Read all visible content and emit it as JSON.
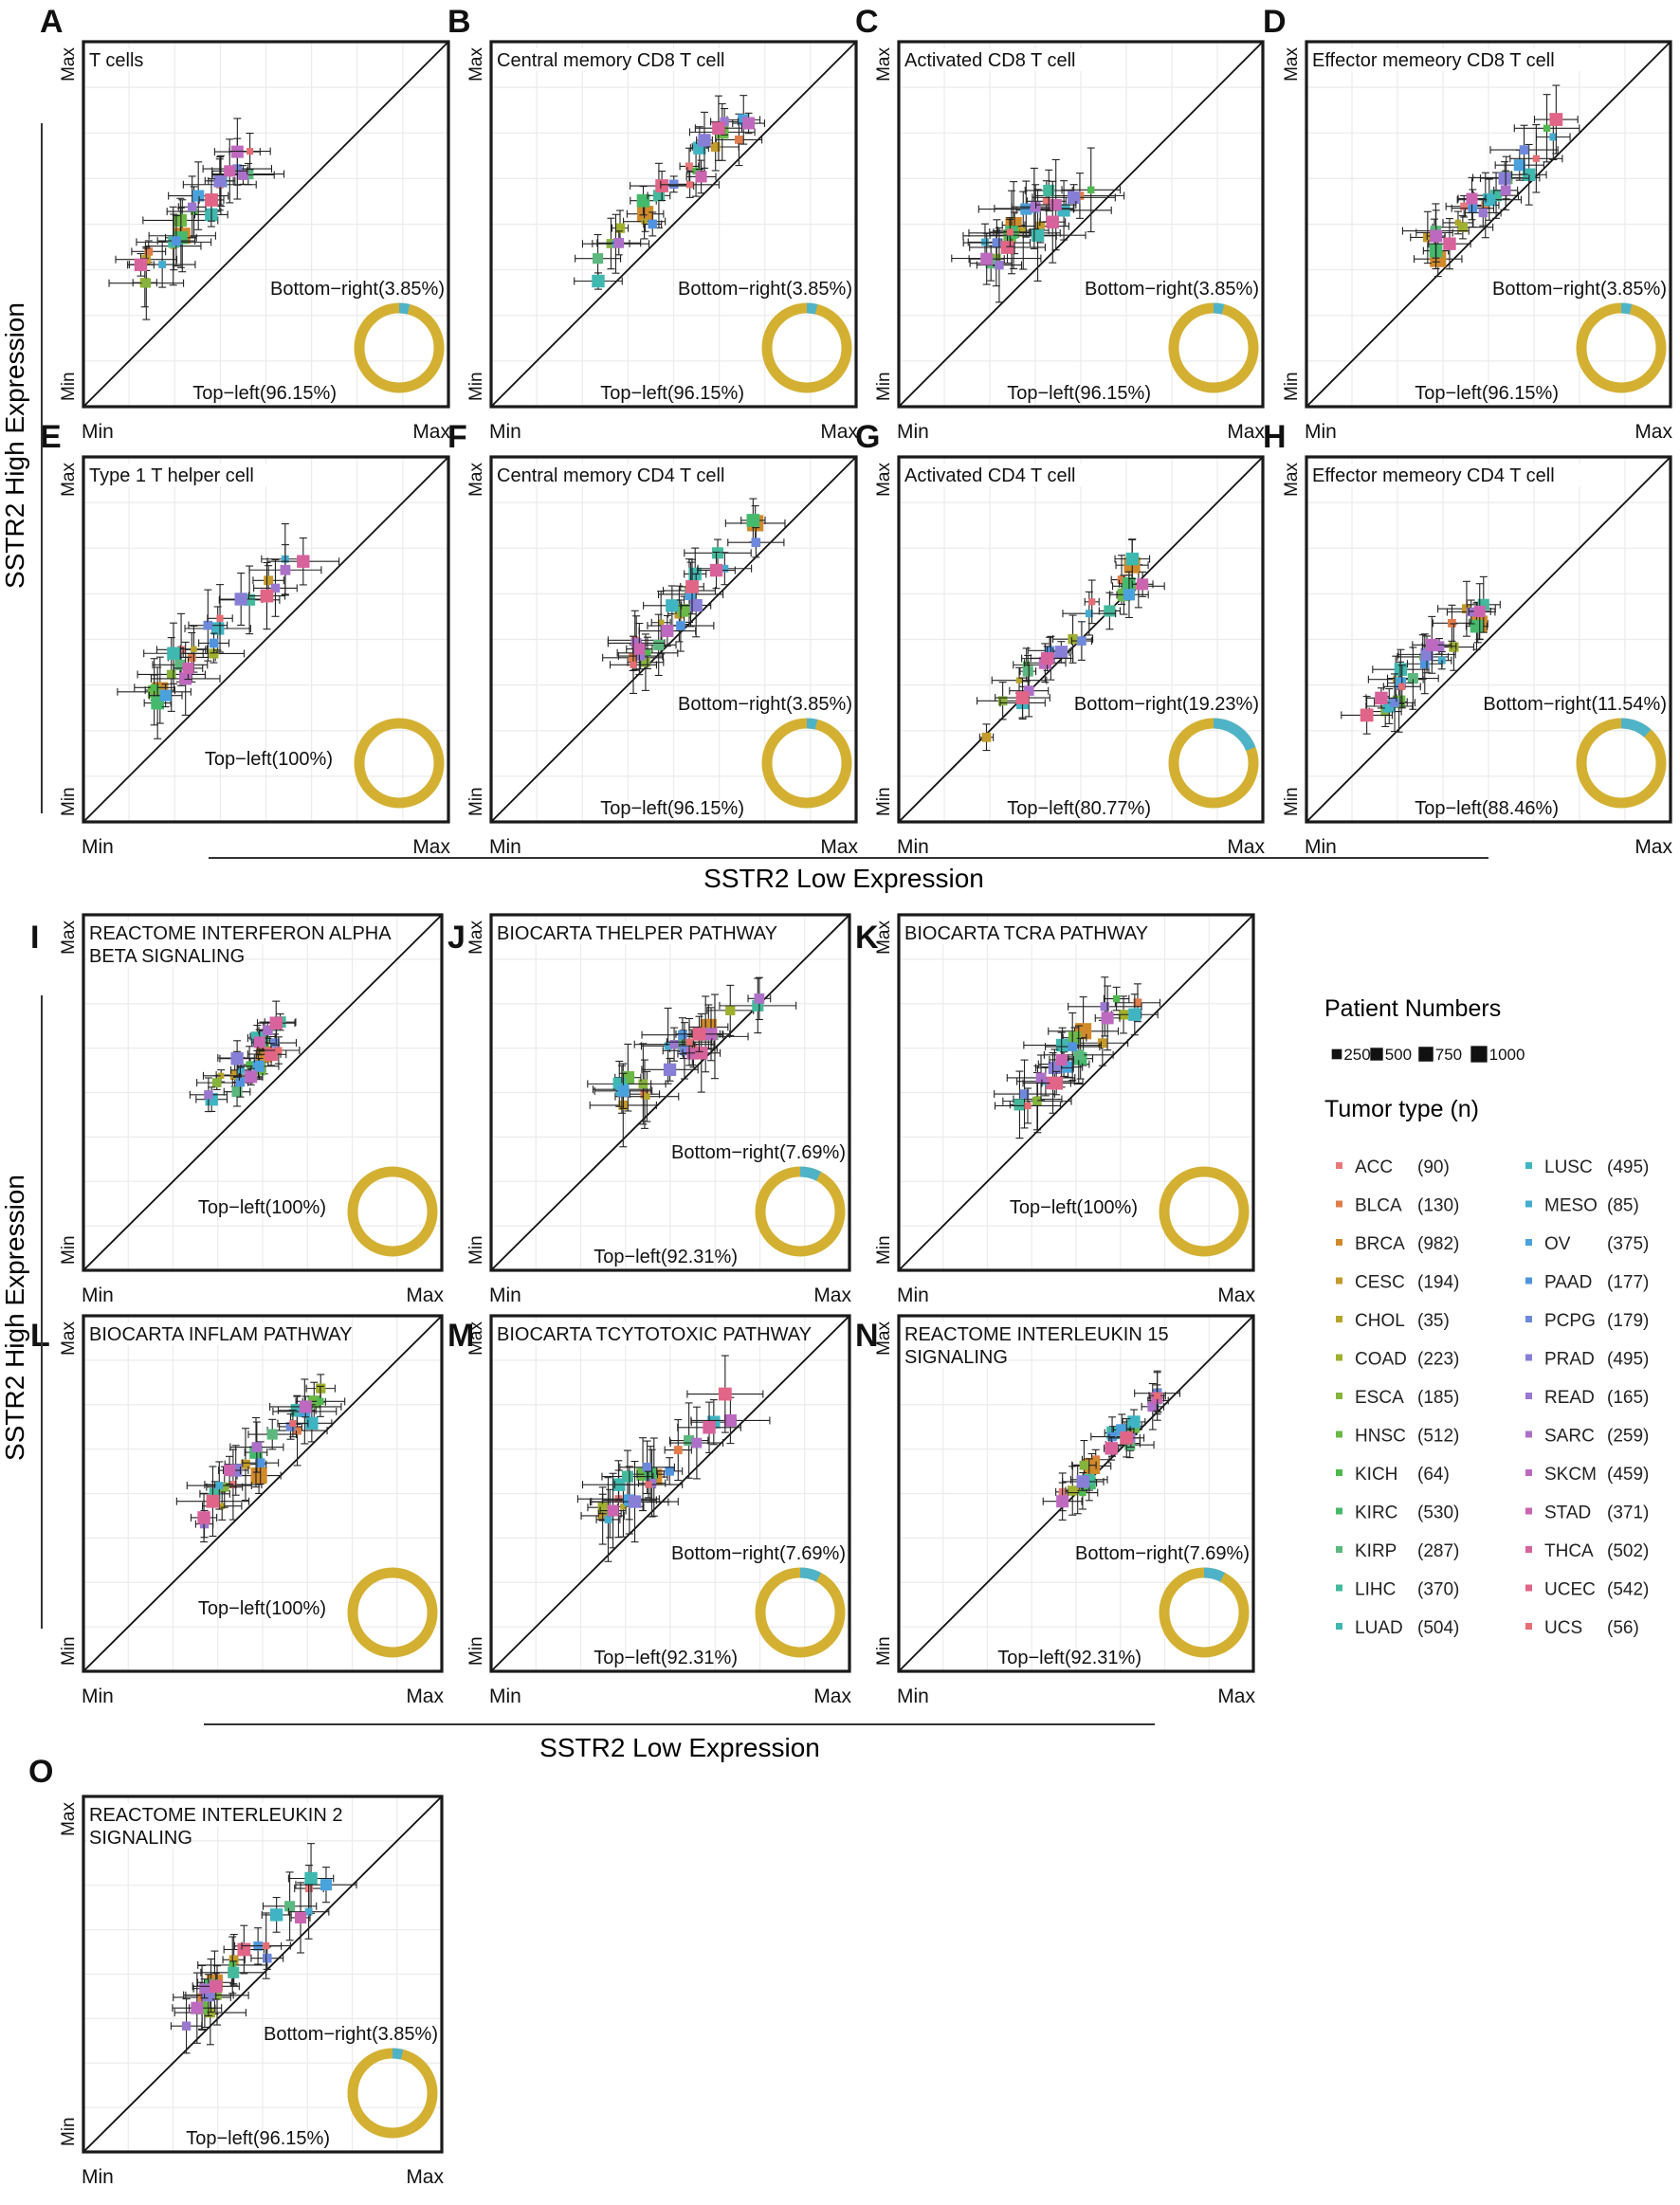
{
  "figure": {
    "upper_ylabel": "SSTR2 High Expression",
    "upper_xlabel": "SSTR2 Low Expression",
    "lower_ylabel": "SSTR2 High Expression",
    "lower_xlabel": "SSTR2 Low Expression",
    "axis_min": "Min",
    "axis_max": "Max"
  },
  "colors": {
    "donut_top_left": "#D4B032",
    "donut_bottom_right": "#4FB3C8",
    "frame": "#1a1a1a",
    "grid": "#ebebeb"
  },
  "legend": {
    "size_title": "Patient Numbers",
    "sizes": [
      {
        "label": "250",
        "value": 250
      },
      {
        "label": "500",
        "value": 500
      },
      {
        "label": "750",
        "value": 750
      },
      {
        "label": "1000",
        "value": 1000
      }
    ],
    "tumor_title": "Tumor type (n)",
    "tumor_types": [
      {
        "name": "ACC",
        "n": "(90)",
        "color": "#E8797A"
      },
      {
        "name": "BLCA",
        "n": "(130)",
        "color": "#E07D4B"
      },
      {
        "name": "BRCA",
        "n": "(982)",
        "color": "#D18A2A"
      },
      {
        "name": "CESC",
        "n": "(194)",
        "color": "#C49A2A"
      },
      {
        "name": "CHOL",
        "n": "(35)",
        "color": "#B5A52B"
      },
      {
        "name": "COAD",
        "n": "(223)",
        "color": "#9FAF2E"
      },
      {
        "name": "ESCA",
        "n": "(185)",
        "color": "#86B33C"
      },
      {
        "name": "HNSC",
        "n": "(512)",
        "color": "#6BB847"
      },
      {
        "name": "KICH",
        "n": "(64)",
        "color": "#4FB94E"
      },
      {
        "name": "KIRC",
        "n": "(530)",
        "color": "#45BA6C"
      },
      {
        "name": "KIRP",
        "n": "(287)",
        "color": "#5CB87E"
      },
      {
        "name": "LIHC",
        "n": "(370)",
        "color": "#45B99C"
      },
      {
        "name": "LUAD",
        "n": "(504)",
        "color": "#3FB8B0"
      },
      {
        "name": "LUSC",
        "n": "(495)",
        "color": "#3FB4C2"
      },
      {
        "name": "MESO",
        "n": "(85)",
        "color": "#44ACD0"
      },
      {
        "name": "OV",
        "n": "(375)",
        "color": "#4AA2DC"
      },
      {
        "name": "PAAD",
        "n": "(177)",
        "color": "#5094DF"
      },
      {
        "name": "PCPG",
        "n": "(179)",
        "color": "#6E88DB"
      },
      {
        "name": "PRAD",
        "n": "(495)",
        "color": "#877FD6"
      },
      {
        "name": "READ",
        "n": "(165)",
        "color": "#9A78D0"
      },
      {
        "name": "SARC",
        "n": "(259)",
        "color": "#AD70C9"
      },
      {
        "name": "SKCM",
        "n": "(459)",
        "color": "#BD69BF"
      },
      {
        "name": "STAD",
        "n": "(371)",
        "color": "#CB65AF"
      },
      {
        "name": "THCA",
        "n": "(502)",
        "color": "#D8629B"
      },
      {
        "name": "UCEC",
        "n": "(542)",
        "color": "#E06586"
      },
      {
        "name": "UCS",
        "n": "(56)",
        "color": "#E56D73"
      }
    ]
  },
  "chart_data": [
    {
      "type": "scatter",
      "panel": "A",
      "title": "T cells",
      "xlabel": "Min … Max",
      "ylabel": "Min … Max",
      "axis_ticks": [
        "Min",
        "Max"
      ],
      "bottom_right": "Bottom−right(3.85%)",
      "top_left": "Top−left(96.15%)",
      "bottom_right_fraction": 0.0385,
      "top_left_fraction": 0.9615,
      "cx": 0.3,
      "cy": 0.52,
      "spread": 0.16,
      "rise": 1.1,
      "err": 0.14
    },
    {
      "type": "scatter",
      "panel": "B",
      "title": "Central memory CD8 T cell",
      "xlabel": "Min … Max",
      "ylabel": "Min … Max",
      "axis_ticks": [
        "Min",
        "Max"
      ],
      "bottom_right": "Bottom−right(3.85%)",
      "top_left": "Top−left(96.15%)",
      "bottom_right_fraction": 0.0385,
      "top_left_fraction": 0.9615,
      "cx": 0.5,
      "cy": 0.6,
      "spread": 0.22,
      "rise": 1.0,
      "err": 0.12
    },
    {
      "type": "scatter",
      "panel": "C",
      "title": "Activated CD8 T cell",
      "xlabel": "Min … Max",
      "ylabel": "Min … Max",
      "axis_ticks": [
        "Min",
        "Max"
      ],
      "bottom_right": "Bottom−right(3.85%)",
      "top_left": "Top−left(96.15%)",
      "bottom_right_fraction": 0.0385,
      "top_left_fraction": 0.9615,
      "cx": 0.42,
      "cy": 0.55,
      "spread": 0.2,
      "rise": 0.8,
      "err": 0.17
    },
    {
      "type": "scatter",
      "panel": "D",
      "title": "Effector memeory CD8 T cell",
      "xlabel": "Min … Max",
      "ylabel": "Min … Max",
      "axis_ticks": [
        "Min",
        "Max"
      ],
      "bottom_right": "Bottom−right(3.85%)",
      "top_left": "Top−left(96.15%)",
      "bottom_right_fraction": 0.0385,
      "top_left_fraction": 0.9615,
      "cx": 0.5,
      "cy": 0.58,
      "spread": 0.2,
      "rise": 0.95,
      "err": 0.12
    },
    {
      "type": "scatter",
      "panel": "E",
      "title": "Type 1 T helper cell",
      "xlabel": "Min … Max",
      "ylabel": "Min … Max",
      "axis_ticks": [
        "Min",
        "Max"
      ],
      "bottom_right": "",
      "top_left": "Top−left(100%)",
      "bottom_right_fraction": 0,
      "top_left_fraction": 1,
      "cx": 0.4,
      "cy": 0.55,
      "spread": 0.22,
      "rise": 0.9,
      "err": 0.13
    },
    {
      "type": "scatter",
      "panel": "F",
      "title": "Central memory CD4 T cell",
      "xlabel": "Min … Max",
      "ylabel": "Min … Max",
      "axis_ticks": [
        "Min",
        "Max"
      ],
      "bottom_right": "Bottom−right(3.85%)",
      "top_left": "Top−left(96.15%)",
      "bottom_right_fraction": 0.0385,
      "top_left_fraction": 0.9615,
      "cx": 0.55,
      "cy": 0.62,
      "spread": 0.18,
      "rise": 1.1,
      "err": 0.12
    },
    {
      "type": "scatter",
      "panel": "G",
      "title": "Activated CD4 T cell",
      "xlabel": "Min … Max",
      "ylabel": "Min … Max",
      "axis_ticks": [
        "Min",
        "Max"
      ],
      "bottom_right": "Bottom−right(19.23%)",
      "top_left": "Top−left(80.77%)",
      "bottom_right_fraction": 0.1923,
      "top_left_fraction": 0.8077,
      "cx": 0.45,
      "cy": 0.48,
      "spread": 0.24,
      "rise": 1.0,
      "err": 0.1
    },
    {
      "type": "scatter",
      "panel": "H",
      "title": "Effector memeory CD4 T cell",
      "xlabel": "Min … Max",
      "ylabel": "Min … Max",
      "axis_ticks": [
        "Min",
        "Max"
      ],
      "bottom_right": "Bottom−right(11.54%)",
      "top_left": "Top−left(88.46%)",
      "bottom_right_fraction": 0.1154,
      "top_left_fraction": 0.8846,
      "cx": 0.35,
      "cy": 0.46,
      "spread": 0.2,
      "rise": 1.0,
      "err": 0.11
    },
    {
      "type": "scatter",
      "panel": "I",
      "title": "REACTOME INTERFERON ALPHA BETA SIGNALING",
      "xlabel": "Min … Max",
      "ylabel": "Min … Max",
      "axis_ticks": [
        "Min",
        "Max"
      ],
      "bottom_right": "",
      "top_left": "Top−left(100%)",
      "bottom_right_fraction": 0,
      "top_left_fraction": 1,
      "cx": 0.45,
      "cy": 0.57,
      "spread": 0.12,
      "rise": 1.0,
      "err": 0.08
    },
    {
      "type": "scatter",
      "panel": "J",
      "title": "BIOCARTA THELPER PATHWAY",
      "xlabel": "Min … Max",
      "ylabel": "Min … Max",
      "axis_ticks": [
        "Min",
        "Max"
      ],
      "bottom_right": "Bottom−right(7.69%)",
      "top_left": "Top−left(92.31%)",
      "bottom_right_fraction": 0.0769,
      "top_left_fraction": 0.9231,
      "cx": 0.55,
      "cy": 0.63,
      "spread": 0.2,
      "rise": 0.8,
      "err": 0.16
    },
    {
      "type": "scatter",
      "panel": "K",
      "title": "BIOCARTA TCRA PATHWAY",
      "xlabel": "Min … Max",
      "ylabel": "Min … Max",
      "axis_ticks": [
        "Min",
        "Max"
      ],
      "bottom_right": "",
      "top_left": "Top−left(100%)",
      "bottom_right_fraction": 0,
      "top_left_fraction": 1,
      "cx": 0.5,
      "cy": 0.62,
      "spread": 0.18,
      "rise": 0.9,
      "err": 0.14
    },
    {
      "type": "scatter",
      "panel": "L",
      "title": "BIOCARTA INFLAM PATHWAY",
      "xlabel": "Min … Max",
      "ylabel": "Min … Max",
      "axis_ticks": [
        "Min",
        "Max"
      ],
      "bottom_right": "",
      "top_left": "Top−left(100%)",
      "bottom_right_fraction": 0,
      "top_left_fraction": 1,
      "cx": 0.5,
      "cy": 0.6,
      "spread": 0.18,
      "rise": 0.9,
      "err": 0.13
    },
    {
      "type": "scatter",
      "panel": "M",
      "title": "BIOCARTA TCYTOTOXIC PATHWAY",
      "xlabel": "Min … Max",
      "ylabel": "Min … Max",
      "axis_ticks": [
        "Min",
        "Max"
      ],
      "bottom_right": "Bottom−right(7.69%)",
      "top_left": "Top−left(92.31%)",
      "bottom_right_fraction": 0.0769,
      "top_left_fraction": 0.9231,
      "cx": 0.5,
      "cy": 0.6,
      "spread": 0.2,
      "rise": 0.85,
      "err": 0.16
    },
    {
      "type": "scatter",
      "panel": "N",
      "title": "REACTOME INTERLEUKIN 15 SIGNALING",
      "xlabel": "Min … Max",
      "ylabel": "Min … Max",
      "axis_ticks": [
        "Min",
        "Max"
      ],
      "bottom_right": "Bottom−right(7.69%)",
      "top_left": "Top−left(92.31%)",
      "bottom_right_fraction": 0.0769,
      "top_left_fraction": 0.9231,
      "cx": 0.6,
      "cy": 0.62,
      "spread": 0.14,
      "rise": 0.95,
      "err": 0.09
    },
    {
      "type": "scatter",
      "panel": "O",
      "title": "REACTOME INTERLEUKIN 2 SIGNALING",
      "xlabel": "Min … Max",
      "ylabel": "Min … Max",
      "axis_ticks": [
        "Min",
        "Max"
      ],
      "bottom_right": "Bottom−right(3.85%)",
      "top_left": "Top−left(96.15%)",
      "bottom_right_fraction": 0.0385,
      "top_left_fraction": 0.9615,
      "cx": 0.48,
      "cy": 0.56,
      "spread": 0.2,
      "rise": 1.05,
      "err": 0.13
    }
  ]
}
